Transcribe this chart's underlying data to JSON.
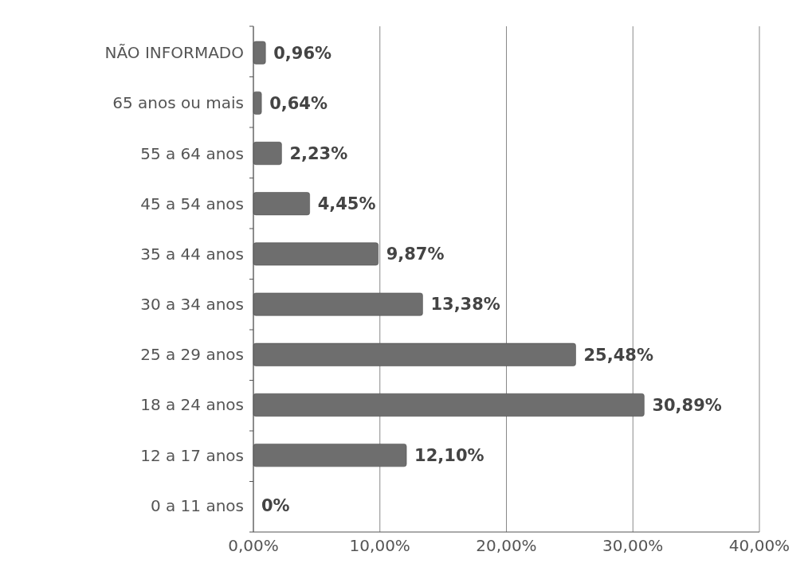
{
  "chart_data": {
    "type": "bar",
    "orientation": "horizontal",
    "categories": [
      "NÃO INFORMADO",
      "65 anos ou mais",
      "55 a 64 anos",
      "45 a 54 anos",
      "35 a 44 anos",
      "30 a 34 anos",
      "25 a 29 anos",
      "18 a 24 anos",
      "12 a 17 anos",
      "0 a 11 anos"
    ],
    "values": [
      0.96,
      0.64,
      2.23,
      4.45,
      9.87,
      13.38,
      25.48,
      30.89,
      12.1,
      0
    ],
    "value_labels": [
      "0,96%",
      "0,64%",
      "2,23%",
      "4,45%",
      "9,87%",
      "13,38%",
      "25,48%",
      "30,89%",
      "12,10%",
      "0%"
    ],
    "color": "#6e6e6e",
    "xlim": [
      0,
      40
    ],
    "xticks": [
      {
        "value": 0,
        "label": "0,00%"
      },
      {
        "value": 10,
        "label": "10,00%"
      },
      {
        "value": 20,
        "label": "20,00%"
      },
      {
        "value": 30,
        "label": "30,00%"
      },
      {
        "value": 40,
        "label": "40,00%"
      }
    ],
    "grid": "x"
  }
}
